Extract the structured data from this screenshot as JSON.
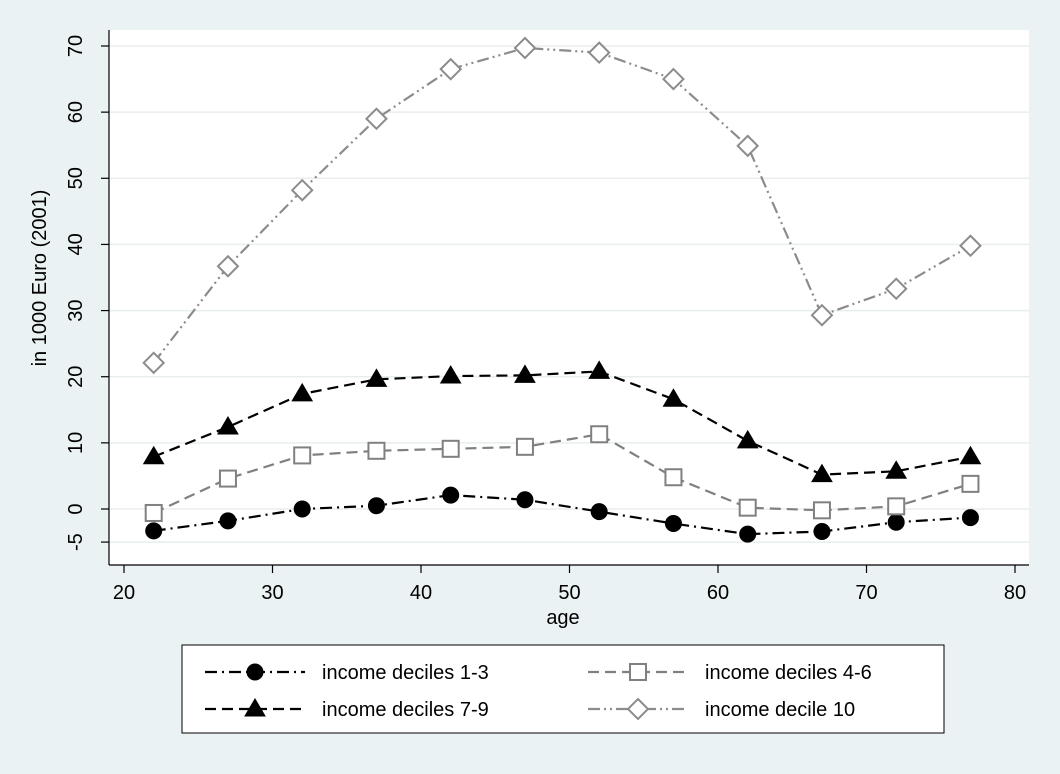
{
  "chart_data": {
    "type": "line",
    "xlabel": "age",
    "ylabel": "in 1000 Euro (2001)",
    "xlim": [
      20,
      80
    ],
    "ylim": [
      -5,
      70
    ],
    "x_ticks": [
      20,
      30,
      40,
      50,
      60,
      70,
      80
    ],
    "y_ticks": [
      -5,
      0,
      10,
      20,
      30,
      40,
      50,
      60,
      70
    ],
    "grid": true,
    "legend_position": "bottom",
    "x": [
      22,
      27,
      32,
      37,
      42,
      47,
      52,
      57,
      62,
      67,
      72,
      77
    ],
    "series": [
      {
        "name": "income deciles 1-3",
        "values": [
          -3.3,
          -1.8,
          0.0,
          0.5,
          2.1,
          1.4,
          -0.4,
          -2.2,
          -3.8,
          -3.4,
          -2.0,
          -1.3
        ],
        "color": "#000000",
        "marker": "circle",
        "line_style": "dash-dot"
      },
      {
        "name": "income deciles 4-6",
        "values": [
          -0.6,
          4.6,
          8.1,
          8.8,
          9.1,
          9.4,
          11.3,
          4.8,
          0.2,
          -0.2,
          0.4,
          3.8
        ],
        "color": "#808080",
        "marker": "hollow-square",
        "line_style": "dash"
      },
      {
        "name": "income deciles 7-9",
        "values": [
          7.9,
          12.4,
          17.4,
          19.6,
          20.1,
          20.2,
          20.8,
          16.6,
          10.3,
          5.2,
          5.7,
          7.9
        ],
        "color": "#000000",
        "marker": "triangle",
        "line_style": "dash"
      },
      {
        "name": "income decile 10",
        "values": [
          22.1,
          36.7,
          48.2,
          59.0,
          66.5,
          69.7,
          69.0,
          65.0,
          54.9,
          29.3,
          33.3,
          39.8
        ],
        "color": "#8c8c8c",
        "marker": "hollow-diamond",
        "line_style": "dash-dot-dot"
      }
    ]
  }
}
